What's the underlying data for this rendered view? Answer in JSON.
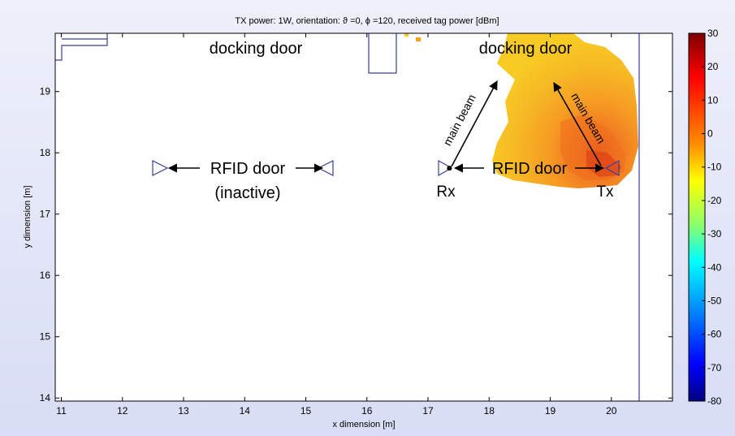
{
  "chart_data": {
    "type": "heatmap",
    "title": "TX power: 1W, orientation: ϑ =0, ϕ =120, received tag power [dBm]",
    "xlabel": "x dimension [m]",
    "ylabel": "y dimension [m]",
    "xlim": [
      10.9,
      21.0
    ],
    "ylim": [
      13.95,
      19.95
    ],
    "x_ticks": [
      11,
      12,
      13,
      14,
      15,
      16,
      17,
      18,
      19,
      20
    ],
    "y_ticks": [
      14,
      15,
      16,
      17,
      18,
      19
    ],
    "colorbar": {
      "range": [
        -80,
        30
      ],
      "ticks": [
        30,
        20,
        10,
        0,
        -10,
        -20,
        -30,
        -40,
        -50,
        -60,
        -70,
        -80
      ],
      "colormap": "jet"
    },
    "annotations": {
      "docking_door_left": "docking door",
      "docking_door_right": "docking door",
      "rfid_door_left": "RFID door",
      "inactive": "(inactive)",
      "rfid_door_right": "RFID door",
      "rx": "Rx",
      "tx": "Tx",
      "main_beam_rx": "main beam",
      "main_beam_tx": "main beam"
    },
    "antennas": {
      "tx": {
        "x": 19.78,
        "y": 17.75
      },
      "rx": {
        "x": 17.35,
        "y": 17.75
      }
    },
    "heat_region": {
      "description_values_dBm": {
        "peak": 2,
        "core": -3,
        "mid": -8,
        "edge": -12
      }
    }
  },
  "colors": {
    "figure_bg": "#e4e7f8",
    "outline": "#3a3f9e",
    "axes_box": "#000000",
    "heat_edge": "#f5c51c",
    "heat_mid": "#f6a21b",
    "heat_core": "#f07b1a",
    "heat_peak": "#e04a16"
  }
}
